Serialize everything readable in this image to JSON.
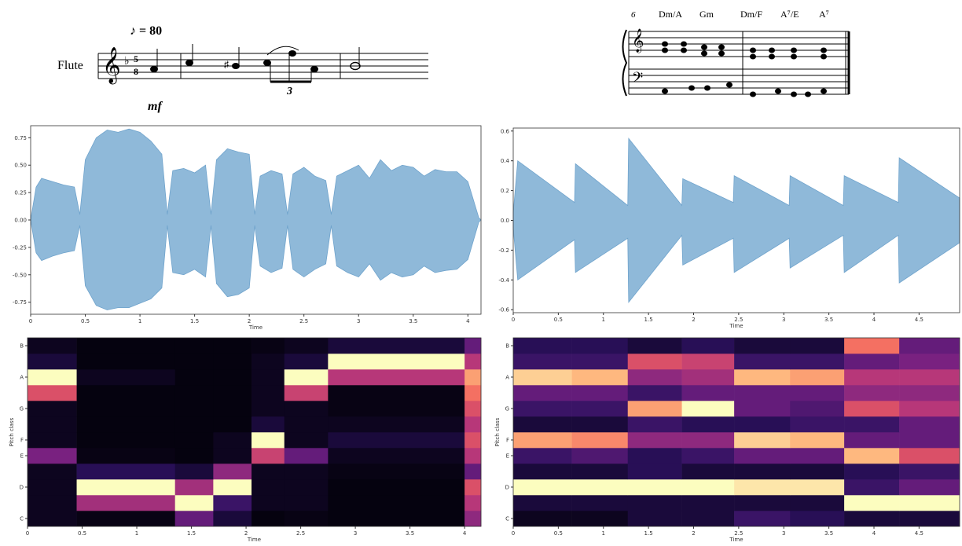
{
  "scores": {
    "left": {
      "instrument": "Flute",
      "tempo": "♪ = 80",
      "dynamic": "mf",
      "tuplet": "3",
      "time_signature": [
        "5",
        "8"
      ]
    },
    "right": {
      "measure": "6",
      "chords": [
        "Dm/A",
        "Gm",
        "Dm/F",
        "A⁷/E",
        "A⁷"
      ]
    }
  },
  "chart_data": [
    {
      "type": "area",
      "color": "#8fb9d9",
      "xlabel": "Time",
      "xlim": [
        0,
        4.12
      ],
      "ylim": [
        -0.86,
        0.86
      ],
      "xticks": [
        0,
        0.5,
        1,
        1.5,
        2,
        2.5,
        3,
        3.5,
        4
      ],
      "yticks": [
        {
          "value": -0.75,
          "label": "-0.75"
        },
        {
          "value": -0.5,
          "label": "-0.50"
        },
        -0.25,
        {
          "value": 0,
          "label": "0.00"
        },
        0.25,
        {
          "value": 0.5,
          "label": "0.50"
        },
        0.75
      ],
      "x": [
        0,
        0.05,
        0.1,
        0.2,
        0.3,
        0.4,
        0.45,
        0.5,
        0.6,
        0.7,
        0.8,
        0.9,
        1.0,
        1.1,
        1.2,
        1.25,
        1.3,
        1.4,
        1.5,
        1.6,
        1.65,
        1.7,
        1.8,
        1.9,
        2.0,
        2.05,
        2.1,
        2.2,
        2.3,
        2.35,
        2.4,
        2.5,
        2.6,
        2.7,
        2.75,
        2.8,
        2.9,
        3.0,
        3.1,
        3.2,
        3.3,
        3.4,
        3.5,
        3.6,
        3.7,
        3.8,
        3.9,
        4.0,
        4.1,
        4.12
      ],
      "values": [
        0,
        0.3,
        0.38,
        0.35,
        0.32,
        0.3,
        0.05,
        0.55,
        0.75,
        0.82,
        0.8,
        0.83,
        0.8,
        0.72,
        0.6,
        0.05,
        0.45,
        0.47,
        0.43,
        0.5,
        0.05,
        0.55,
        0.65,
        0.62,
        0.6,
        0.05,
        0.4,
        0.45,
        0.42,
        0.05,
        0.42,
        0.48,
        0.4,
        0.36,
        0.05,
        0.4,
        0.45,
        0.5,
        0.38,
        0.55,
        0.45,
        0.5,
        0.48,
        0.4,
        0.46,
        0.44,
        0.44,
        0.35,
        0.02,
        0
      ],
      "lower": [
        0,
        -0.3,
        -0.37,
        -0.33,
        -0.3,
        -0.28,
        -0.05,
        -0.6,
        -0.78,
        -0.82,
        -0.8,
        -0.8,
        -0.76,
        -0.72,
        -0.62,
        -0.05,
        -0.48,
        -0.5,
        -0.45,
        -0.52,
        -0.05,
        -0.58,
        -0.7,
        -0.68,
        -0.62,
        -0.05,
        -0.42,
        -0.48,
        -0.44,
        -0.05,
        -0.45,
        -0.52,
        -0.45,
        -0.4,
        -0.05,
        -0.42,
        -0.48,
        -0.52,
        -0.4,
        -0.55,
        -0.48,
        -0.52,
        -0.5,
        -0.42,
        -0.48,
        -0.46,
        -0.45,
        -0.36,
        -0.02,
        0
      ]
    },
    {
      "type": "area",
      "color": "#8fb9d9",
      "xlabel": "Time",
      "xlim": [
        0,
        4.95
      ],
      "ylim": [
        -0.62,
        0.62
      ],
      "xticks": [
        0,
        0.5,
        1,
        1.5,
        2,
        2.5,
        3,
        3.5,
        4,
        4.5
      ],
      "yticks": [
        -0.6,
        -0.4,
        -0.2,
        {
          "value": 0,
          "label": "0.0"
        },
        0.2,
        0.4,
        0.6
      ],
      "x": [
        0,
        0.05,
        0.68,
        0.69,
        1.27,
        1.28,
        1.87,
        1.88,
        2.44,
        2.45,
        3.06,
        3.07,
        3.66,
        3.67,
        4.27,
        4.28,
        4.95
      ],
      "values": [
        0.05,
        0.4,
        0.12,
        0.38,
        0.1,
        0.55,
        0.1,
        0.28,
        0.12,
        0.3,
        0.1,
        0.3,
        0.1,
        0.3,
        0.12,
        0.42,
        0.15
      ],
      "lower": [
        -0.05,
        -0.4,
        -0.13,
        -0.35,
        -0.12,
        -0.55,
        -0.1,
        -0.3,
        -0.12,
        -0.35,
        -0.12,
        -0.32,
        -0.1,
        -0.35,
        -0.1,
        -0.42,
        -0.15
      ]
    },
    {
      "type": "heatmap",
      "xlabel": "Time",
      "ylabel": "Pitch class",
      "xlim": [
        0,
        4.15
      ],
      "xticks": [
        0,
        0.5,
        1,
        1.5,
        2,
        2.5,
        3,
        3.5,
        4
      ],
      "rows": [
        "C",
        null,
        "D",
        null,
        "E",
        "F",
        null,
        "G",
        null,
        "A",
        null,
        "B"
      ],
      "colorscale": [
        "#000004",
        "#2c115f",
        "#721f81",
        "#b73779",
        "#f1605d",
        "#feb078",
        "#fcfdbf"
      ],
      "x_bins": [
        0,
        0.45,
        1.35,
        1.7,
        2.05,
        2.35,
        2.75,
        4.0,
        4.15
      ],
      "values": [
        [
          0.05,
          0.03,
          0.3,
          0.1,
          0.02,
          0.03,
          0.02,
          0.4
        ],
        [
          0.05,
          0.45,
          1,
          0.2,
          0.05,
          0.05,
          0.02,
          0.5
        ],
        [
          0.05,
          1,
          0.45,
          1,
          0.05,
          0.05,
          0.02,
          0.6
        ],
        [
          0.05,
          0.15,
          0.1,
          0.4,
          0.05,
          0.05,
          0.03,
          0.3
        ],
        [
          0.35,
          0.03,
          0.02,
          0.05,
          0.55,
          0.3,
          0.05,
          0.5
        ],
        [
          0.05,
          0.02,
          0.02,
          0.05,
          1,
          0.05,
          0.1,
          0.6
        ],
        [
          0.05,
          0.02,
          0.02,
          0.02,
          0.1,
          0.05,
          0.05,
          0.5
        ],
        [
          0.05,
          0.02,
          0.02,
          0.02,
          0.05,
          0.05,
          0.03,
          0.6
        ],
        [
          0.6,
          0.02,
          0.02,
          0.02,
          0.05,
          0.55,
          0.03,
          0.7
        ],
        [
          1,
          0.05,
          0.02,
          0.02,
          0.05,
          1,
          0.5,
          0.8
        ],
        [
          0.1,
          0.02,
          0.02,
          0.02,
          0.05,
          0.1,
          1,
          0.5
        ],
        [
          0.05,
          0.02,
          0.02,
          0.02,
          0.03,
          0.05,
          0.1,
          0.3
        ]
      ]
    },
    {
      "type": "heatmap",
      "xlabel": "Time",
      "ylabel": "Pitch class",
      "xlim": [
        0,
        4.95
      ],
      "xticks": [
        0,
        0.5,
        1,
        1.5,
        2,
        2.5,
        3,
        3.5,
        4,
        4.5
      ],
      "rows": [
        "C",
        null,
        "D",
        null,
        "E",
        "F",
        null,
        "G",
        null,
        "A",
        null,
        "B"
      ],
      "colorscale": [
        "#000004",
        "#2c115f",
        "#721f81",
        "#b73779",
        "#f1605d",
        "#feb078",
        "#fcfdbf"
      ],
      "x_bins": [
        0,
        0.65,
        1.27,
        1.87,
        2.45,
        3.07,
        3.67,
        4.28,
        4.95
      ],
      "values": [
        [
          0.05,
          0.05,
          0.1,
          0.1,
          0.2,
          0.15,
          0.1,
          0.1
        ],
        [
          0.1,
          0.1,
          0.1,
          0.1,
          0.1,
          0.1,
          1,
          1
        ],
        [
          1,
          1,
          1,
          1,
          0.95,
          0.95,
          0.2,
          0.3
        ],
        [
          0.1,
          0.1,
          0.15,
          0.1,
          0.1,
          0.1,
          0.15,
          0.2
        ],
        [
          0.2,
          0.25,
          0.15,
          0.2,
          0.3,
          0.3,
          0.85,
          0.6
        ],
        [
          0.8,
          0.75,
          0.4,
          0.4,
          0.9,
          0.85,
          0.3,
          0.3
        ],
        [
          0.1,
          0.1,
          0.2,
          0.15,
          0.15,
          0.2,
          0.2,
          0.3
        ],
        [
          0.2,
          0.2,
          0.8,
          1,
          0.3,
          0.25,
          0.6,
          0.5
        ],
        [
          0.3,
          0.3,
          0.2,
          0.3,
          0.3,
          0.3,
          0.4,
          0.4
        ],
        [
          0.9,
          0.85,
          0.4,
          0.45,
          0.85,
          0.8,
          0.5,
          0.5
        ],
        [
          0.2,
          0.2,
          0.6,
          0.55,
          0.2,
          0.2,
          0.3,
          0.35
        ],
        [
          0.15,
          0.15,
          0.1,
          0.15,
          0.1,
          0.1,
          0.7,
          0.3
        ]
      ]
    }
  ]
}
